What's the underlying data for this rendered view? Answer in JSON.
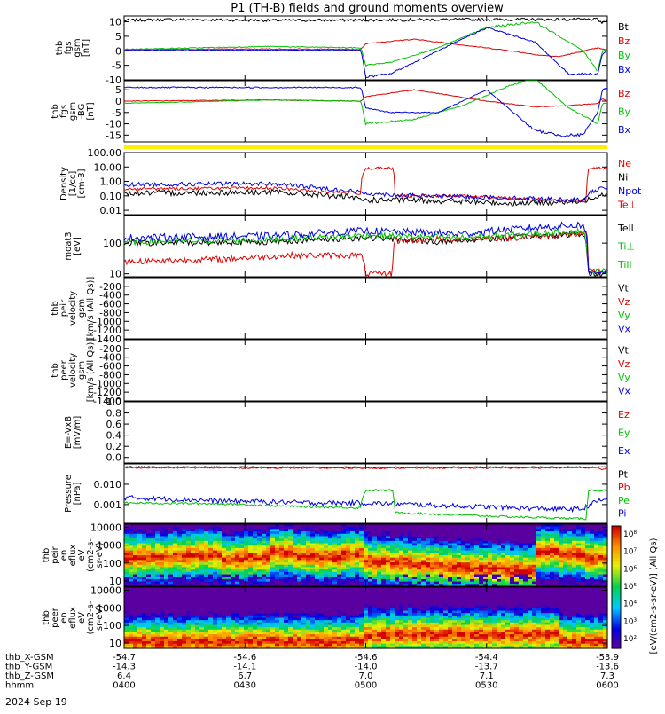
{
  "title": "P1 (TH-B) fields and ground moments overview",
  "date_label": "2024 Sep 19",
  "colors": {
    "black": "#000000",
    "red": "#e00000",
    "green": "#00c000",
    "blue": "#0000e0",
    "yellow": "#ffee00"
  },
  "chart_data": [
    {
      "type": "line",
      "ylabel_lines": [
        "thb",
        "fgs",
        "gsm",
        "[nT]"
      ],
      "ylim": [
        -10,
        12
      ],
      "yticks": [
        {
          "v": 10,
          "t": "10"
        },
        {
          "v": 5,
          "t": "5"
        },
        {
          "v": 0,
          "t": "0"
        },
        {
          "v": -5,
          "t": "-5"
        },
        {
          "v": -10,
          "t": "-10"
        }
      ],
      "legend": [
        {
          "name": "Bt",
          "color": "#000000"
        },
        {
          "name": "Bz",
          "color": "#e00000"
        },
        {
          "name": "By",
          "color": "#00c000"
        },
        {
          "name": "Bx",
          "color": "#0000e0"
        }
      ],
      "series": [
        {
          "name": "Bt",
          "color": "#000000",
          "noise": 0.15,
          "x": [
            0,
            0.1,
            0.3,
            0.5,
            0.7,
            0.98,
            0.99,
            1.0
          ],
          "y": [
            10.5,
            10.8,
            10.5,
            10.6,
            10.8,
            10.8,
            9.5,
            10.5
          ]
        },
        {
          "name": "Bz",
          "color": "#e00000",
          "noise": 0.15,
          "x": [
            0,
            0.3,
            0.49,
            0.5,
            0.6,
            0.8,
            0.86,
            0.9,
            0.98,
            0.99,
            1.0
          ],
          "y": [
            0.5,
            0.6,
            0.5,
            2.5,
            4,
            0,
            -1.5,
            -2,
            1,
            0.5,
            0.5
          ]
        },
        {
          "name": "By",
          "color": "#00c000",
          "noise": 0.15,
          "x": [
            0,
            0.3,
            0.49,
            0.5,
            0.55,
            0.65,
            0.75,
            0.85,
            0.95,
            0.98,
            0.99,
            1.0
          ],
          "y": [
            0.5,
            1.5,
            1.0,
            -5,
            -4,
            1,
            8,
            10,
            0,
            -7,
            0,
            0.5
          ]
        },
        {
          "name": "Bx",
          "color": "#0000e0",
          "noise": 0.15,
          "x": [
            0,
            0.49,
            0.5,
            0.55,
            0.65,
            0.75,
            0.85,
            0.92,
            0.98,
            0.99,
            1.0
          ],
          "y": [
            0.2,
            0.2,
            -9,
            -8,
            0,
            8,
            3,
            -8,
            -8,
            -1,
            0
          ]
        }
      ]
    },
    {
      "type": "line",
      "ylabel_lines": [
        "thb",
        "fgs",
        "gsm",
        "-BG",
        "[nT]"
      ],
      "ylim": [
        -18,
        9
      ],
      "yticks": [
        {
          "v": 5,
          "t": "5"
        },
        {
          "v": 0,
          "t": "0"
        },
        {
          "v": -5,
          "t": "-5"
        },
        {
          "v": -10,
          "t": "-10"
        },
        {
          "v": -15,
          "t": "-15"
        }
      ],
      "legend": [
        {
          "name": "Bz",
          "color": "#e00000"
        },
        {
          "name": "By",
          "color": "#00c000"
        },
        {
          "name": "Bx",
          "color": "#0000e0"
        }
      ],
      "series": [
        {
          "name": "Bz",
          "color": "#e00000",
          "noise": 0.15,
          "x": [
            0,
            0.3,
            0.49,
            0.5,
            0.6,
            0.75,
            0.85,
            0.92,
            0.98,
            0.99,
            1.0
          ],
          "y": [
            0,
            0.5,
            0,
            2,
            5,
            0,
            -2.5,
            -2,
            -1,
            1,
            0
          ]
        },
        {
          "name": "By",
          "color": "#00c000",
          "noise": 0.15,
          "x": [
            0,
            0.3,
            0.49,
            0.5,
            0.6,
            0.7,
            0.8,
            0.85,
            0.92,
            0.98,
            0.99,
            1.0
          ],
          "y": [
            -1,
            0.5,
            0,
            -10,
            -8,
            -2,
            7,
            10,
            -3,
            -10,
            -1,
            -1
          ]
        },
        {
          "name": "Bx",
          "color": "#0000e0",
          "noise": 0.15,
          "x": [
            0,
            0.49,
            0.5,
            0.55,
            0.65,
            0.75,
            0.85,
            0.9,
            0.95,
            0.98,
            0.99,
            1.0
          ],
          "y": [
            6,
            6,
            -3,
            -5,
            -5,
            5,
            -13,
            -15,
            -15,
            -5,
            5,
            6
          ]
        }
      ]
    },
    {
      "type": "line",
      "yscale": "log",
      "ylabel_lines": [
        "Density",
        "[1/cc]",
        "[cm-3]"
      ],
      "ylim": [
        0.005,
        100
      ],
      "yticks": [
        {
          "v": 100,
          "t": "100.00"
        },
        {
          "v": 10,
          "t": "10.00"
        },
        {
          "v": 1,
          "t": "1.00"
        },
        {
          "v": 0.1,
          "t": "0.10"
        },
        {
          "v": 0.01,
          "t": "0.01"
        }
      ],
      "legend": [
        {
          "name": "Ne",
          "color": "#e00000"
        },
        {
          "name": "Ni",
          "color": "#000000"
        },
        {
          "name": "Npot",
          "color": "#0000e0"
        },
        {
          "name": "Te⊥",
          "color": "#e00000"
        }
      ],
      "series": [
        {
          "name": "Ni",
          "color": "#000000",
          "noise": 0.2,
          "x": [
            0,
            0.3,
            0.4,
            0.5,
            0.6,
            0.8,
            0.95,
            1.0
          ],
          "y": [
            0.15,
            0.18,
            0.12,
            0.05,
            0.05,
            0.03,
            0.04,
            0.15
          ]
        },
        {
          "name": "Ne",
          "color": "#e00000",
          "noise": 0.1,
          "x": [
            0,
            0.3,
            0.4,
            0.49,
            0.5,
            0.555,
            0.56,
            0.7,
            0.8,
            0.958,
            0.96,
            1.0
          ],
          "y": [
            0.3,
            0.35,
            0.2,
            0.15,
            8,
            8,
            0.1,
            0.1,
            0.07,
            0.04,
            8,
            8
          ]
        },
        {
          "name": "Npot",
          "color": "#0000e0",
          "noise": 0.15,
          "x": [
            0,
            0.3,
            0.4,
            0.5,
            0.6,
            0.8,
            0.95,
            1.0
          ],
          "y": [
            0.6,
            0.7,
            0.35,
            0.15,
            0.1,
            0.07,
            0.05,
            0.4
          ]
        }
      ]
    },
    {
      "type": "line",
      "yscale": "log",
      "ylabel_lines": [
        "moat3",
        "[eV]"
      ],
      "ylim": [
        8,
        800
      ],
      "yticks": [
        {
          "v": 100,
          "t": "100"
        },
        {
          "v": 10,
          "t": "10"
        }
      ],
      "legend": [
        {
          "name": "Tell",
          "color": "#000000"
        },
        {
          "name": "Ti⊥",
          "color": "#00c000"
        },
        {
          "name": "Till",
          "color": "#00c000"
        }
      ],
      "series": [
        {
          "name": "Tell",
          "color": "#000000",
          "noise": 0.1,
          "x": [
            0,
            0.3,
            0.5,
            0.65,
            0.8,
            0.95,
            0.96,
            1.0
          ],
          "y": [
            100,
            110,
            150,
            110,
            150,
            200,
            10,
            10
          ]
        },
        {
          "name": "Te⊥",
          "color": "#e00000",
          "noise": 0.1,
          "x": [
            0,
            0.2,
            0.35,
            0.49,
            0.5,
            0.555,
            0.56,
            0.8,
            0.95,
            0.958,
            0.96,
            1.0
          ],
          "y": [
            25,
            30,
            40,
            40,
            10,
            10,
            120,
            150,
            200,
            200,
            12,
            12
          ]
        },
        {
          "name": "Ti⊥",
          "color": "#00c000",
          "noise": 0.1,
          "x": [
            0,
            0.3,
            0.5,
            0.7,
            0.8,
            0.95,
            0.96,
            1.0
          ],
          "y": [
            110,
            130,
            180,
            150,
            180,
            250,
            12,
            12
          ]
        },
        {
          "name": "Till",
          "color": "#0000e0",
          "noise": 0.12,
          "x": [
            0,
            0.3,
            0.5,
            0.7,
            0.8,
            0.95,
            0.96,
            1.0
          ],
          "y": [
            150,
            170,
            250,
            200,
            280,
            400,
            12,
            12
          ]
        }
      ]
    },
    {
      "type": "line",
      "ylabel_lines": [
        "thb",
        "peir",
        "velocity",
        "gsm",
        "[km/s (All Qs)]"
      ],
      "ylim": [
        -1400,
        0
      ],
      "yticks": [
        {
          "v": -200,
          "t": "-200"
        },
        {
          "v": -400,
          "t": "-400"
        },
        {
          "v": -600,
          "t": "-600"
        },
        {
          "v": -800,
          "t": "-800"
        },
        {
          "v": -1000,
          "t": "-1000"
        },
        {
          "v": -1200,
          "t": "-1200"
        },
        {
          "v": -1400,
          "t": "-1400"
        }
      ],
      "legend": [
        {
          "name": "Vt",
          "color": "#000000"
        },
        {
          "name": "Vz",
          "color": "#e00000"
        },
        {
          "name": "Vy",
          "color": "#00c000"
        },
        {
          "name": "Vx",
          "color": "#0000e0"
        }
      ],
      "series": []
    },
    {
      "type": "line",
      "ylabel_lines": [
        "thb",
        "peer",
        "velocity",
        "gsm",
        "[km/s (All Qs)]"
      ],
      "ylim": [
        -1400,
        0
      ],
      "yticks": [
        {
          "v": -200,
          "t": "-200"
        },
        {
          "v": -400,
          "t": "-400"
        },
        {
          "v": -600,
          "t": "-600"
        },
        {
          "v": -800,
          "t": "-800"
        },
        {
          "v": -1000,
          "t": "-1000"
        },
        {
          "v": -1200,
          "t": "-1200"
        },
        {
          "v": -1400,
          "t": "-1400"
        }
      ],
      "legend": [
        {
          "name": "Vt",
          "color": "#000000"
        },
        {
          "name": "Vz",
          "color": "#e00000"
        },
        {
          "name": "Vy",
          "color": "#00c000"
        },
        {
          "name": "Vx",
          "color": "#0000e0"
        }
      ],
      "series": []
    },
    {
      "type": "line",
      "ylabel_lines": [
        "E=-VxB",
        "[mV/m]"
      ],
      "ylim": [
        -0.1,
        1.0
      ],
      "yticks": [
        {
          "v": 1.0,
          "t": "1.0"
        },
        {
          "v": 0.8,
          "t": "0.8"
        },
        {
          "v": 0.6,
          "t": "0.6"
        },
        {
          "v": 0.4,
          "t": "0.4"
        },
        {
          "v": 0.2,
          "t": "0.2"
        },
        {
          "v": 0.0,
          "t": "0.0"
        }
      ],
      "legend": [
        {
          "name": "Ez",
          "color": "#e00000"
        },
        {
          "name": "Ey",
          "color": "#00c000"
        },
        {
          "name": "Ex",
          "color": "#0000e0"
        }
      ],
      "series": []
    },
    {
      "type": "line",
      "yscale": "log",
      "ylabel_lines": [
        "Pressure",
        "[nPa]"
      ],
      "ylim": [
        0.00012,
        0.1
      ],
      "yticks": [
        {
          "v": 0.01,
          "t": "0.010"
        },
        {
          "v": 0.001,
          "t": "0.001"
        }
      ],
      "legend": [
        {
          "name": "Pt",
          "color": "#000000"
        },
        {
          "name": "Pb",
          "color": "#e00000"
        },
        {
          "name": "Pe",
          "color": "#00c000"
        },
        {
          "name": "Pi",
          "color": "#0000e0"
        }
      ],
      "series": [
        {
          "name": "Pt",
          "color": "#000000",
          "noise": 0.03,
          "x": [
            0,
            0.5,
            1.0
          ],
          "y": [
            0.07,
            0.068,
            0.07
          ]
        },
        {
          "name": "Pb",
          "color": "#e00000",
          "noise": 0.03,
          "x": [
            0,
            0.5,
            0.98,
            0.99,
            1.0
          ],
          "y": [
            0.065,
            0.062,
            0.065,
            0.05,
            0.065
          ]
        },
        {
          "name": "Pi",
          "color": "#0000e0",
          "noise": 0.12,
          "x": [
            0,
            0.2,
            0.4,
            0.5,
            0.65,
            0.8,
            0.9,
            0.95,
            1.0
          ],
          "y": [
            0.0022,
            0.0015,
            0.0012,
            0.0012,
            0.0009,
            0.0007,
            0.0006,
            0.0006,
            0.002
          ]
        },
        {
          "name": "Pe",
          "color": "#00c000",
          "noise": 0.05,
          "x": [
            0,
            0.2,
            0.35,
            0.49,
            0.5,
            0.555,
            0.56,
            0.7,
            0.8,
            0.95,
            0.958,
            0.96,
            1.0
          ],
          "y": [
            0.0012,
            0.0011,
            0.0008,
            0.0007,
            0.005,
            0.005,
            0.0004,
            0.0003,
            0.00025,
            0.0002,
            0.0002,
            0.005,
            0.005
          ]
        }
      ]
    },
    {
      "type": "heatmap",
      "yscale": "log",
      "ylabel_lines": [
        "thb",
        "peir",
        "en",
        "eflux",
        "eV",
        "(cm2-s-",
        "sr-eV)"
      ],
      "ylim": [
        5,
        15000
      ],
      "yticks": [
        {
          "v": 10000,
          "t": "10000"
        },
        {
          "v": 1000,
          "t": "1000"
        },
        {
          "v": 100,
          "t": "100"
        },
        {
          "v": 10,
          "t": "10"
        }
      ],
      "peak_energy": [
        200,
        200,
        250,
        300,
        150,
        200,
        400,
        250,
        200,
        300,
        120,
        100,
        80,
        60,
        50,
        50,
        40,
        400,
        300,
        200
      ]
    },
    {
      "type": "heatmap",
      "yscale": "log",
      "ylabel_lines": [
        "thb",
        "peer",
        "en",
        "eflux",
        "eV",
        "(cm2-s-",
        "sr-eV)"
      ],
      "ylim": [
        5,
        15000
      ],
      "yticks": [
        {
          "v": 10000,
          "t": "10000"
        },
        {
          "v": 1000,
          "t": "1000"
        },
        {
          "v": 100,
          "t": "100"
        },
        {
          "v": 10,
          "t": "10"
        }
      ],
      "peak_energy": [
        12,
        12,
        12,
        12,
        12,
        12,
        12,
        12,
        12,
        12,
        30,
        30,
        30,
        30,
        30,
        30,
        30,
        30,
        12,
        12
      ]
    }
  ],
  "colorbar": {
    "label": "[eV/(cm2-s-sr-eV)] (All Qs)",
    "ticks": [
      "10⁸",
      "10⁷",
      "10⁶",
      "10⁵",
      "10⁴",
      "10³",
      "10²"
    ]
  },
  "xaxis": {
    "rows": [
      {
        "name": "thb_X-GSM",
        "values": [
          "-54.7",
          "-54.6",
          "-54.6",
          "-54.4",
          "-53.9"
        ]
      },
      {
        "name": "thb_Y-GSM",
        "values": [
          "-14.3",
          "-14.1",
          "-14.0",
          "-13.7",
          "-13.6"
        ]
      },
      {
        "name": "thb_Z-GSM",
        "values": [
          "6.4",
          "6.7",
          "7.0",
          "7.1",
          "7.3"
        ]
      },
      {
        "name": "hhmm",
        "values": [
          "0400",
          "0430",
          "0500",
          "0530",
          "0600"
        ]
      }
    ]
  }
}
